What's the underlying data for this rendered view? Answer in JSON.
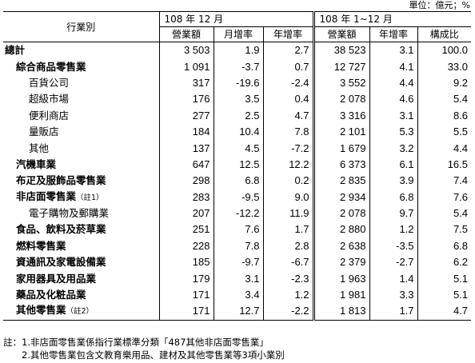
{
  "unit_label": "單位：億元；%",
  "header": {
    "category_col": "行業別",
    "period1": "108 年 12 月",
    "period2": "108 年 1~12 月",
    "p1_cols": [
      "營業額",
      "月增率",
      "年增率"
    ],
    "p2_cols": [
      "營業額",
      "年增率",
      "構成比"
    ]
  },
  "rows": [
    {
      "name": "總計",
      "level": 0,
      "note": "",
      "c1": "3 503",
      "c2": "1.9",
      "c3": "2.7",
      "c4": "38 523",
      "c5": "3.1",
      "c6": "100.0"
    },
    {
      "name": "綜合商品零售業",
      "level": 1,
      "note": "",
      "c1": "1 091",
      "c2": "-3.7",
      "c3": "0.7",
      "c4": "12 727",
      "c5": "4.1",
      "c6": "33.0"
    },
    {
      "name": "百貨公司",
      "level": 2,
      "note": "",
      "c1": "317",
      "c2": "-19.6",
      "c3": "-2.4",
      "c4": "3 552",
      "c5": "4.4",
      "c6": "9.2"
    },
    {
      "name": "超級市場",
      "level": 2,
      "note": "",
      "c1": "176",
      "c2": "3.5",
      "c3": "0.4",
      "c4": "2 078",
      "c5": "4.6",
      "c6": "5.4"
    },
    {
      "name": "便利商店",
      "level": 2,
      "note": "",
      "c1": "277",
      "c2": "2.5",
      "c3": "4.7",
      "c4": "3 316",
      "c5": "3.1",
      "c6": "8.6"
    },
    {
      "name": "量販店",
      "level": 2,
      "note": "",
      "c1": "184",
      "c2": "10.4",
      "c3": "7.8",
      "c4": "2 101",
      "c5": "5.3",
      "c6": "5.5"
    },
    {
      "name": "其他",
      "level": 2,
      "note": "",
      "c1": "137",
      "c2": "4.5",
      "c3": "-7.2",
      "c4": "1 679",
      "c5": "3.2",
      "c6": "4.4"
    },
    {
      "name": "汽機車業",
      "level": 1,
      "note": "",
      "c1": "647",
      "c2": "12.5",
      "c3": "12.2",
      "c4": "6 373",
      "c5": "6.1",
      "c6": "16.5"
    },
    {
      "name": "布疋及服飾品零售業",
      "level": 1,
      "note": "",
      "c1": "298",
      "c2": "6.8",
      "c3": "0.2",
      "c4": "2 835",
      "c5": "3.9",
      "c6": "7.4"
    },
    {
      "name": "非店面零售業",
      "level": 1,
      "note": "（註1）",
      "c1": "283",
      "c2": "-9.5",
      "c3": "9.0",
      "c4": "2 934",
      "c5": "6.8",
      "c6": "7.6"
    },
    {
      "name": "電子購物及郵購業",
      "level": 2,
      "note": "",
      "c1": "207",
      "c2": "-12.2",
      "c3": "11.9",
      "c4": "2 078",
      "c5": "9.7",
      "c6": "5.4"
    },
    {
      "name": "食品、飲料及菸草業",
      "level": 1,
      "note": "",
      "c1": "251",
      "c2": "7.6",
      "c3": "1.7",
      "c4": "2 880",
      "c5": "1.2",
      "c6": "7.5"
    },
    {
      "name": "燃料零售業",
      "level": 1,
      "note": "",
      "c1": "228",
      "c2": "7.8",
      "c3": "2.8",
      "c4": "2 638",
      "c5": "-3.5",
      "c6": "6.8"
    },
    {
      "name": "資通訊及家電設備業",
      "level": 1,
      "note": "",
      "c1": "185",
      "c2": "-9.7",
      "c3": "-6.7",
      "c4": "2 379",
      "c5": "-2.7",
      "c6": "6.2"
    },
    {
      "name": "家用器具及用品業",
      "level": 1,
      "note": "",
      "c1": "179",
      "c2": "3.1",
      "c3": "-2.3",
      "c4": "1 963",
      "c5": "1.4",
      "c6": "5.1"
    },
    {
      "name": "藥品及化粧品業",
      "level": 1,
      "note": "",
      "c1": "171",
      "c2": "3.4",
      "c3": "1.2",
      "c4": "1 981",
      "c5": "3.3",
      "c6": "5.1"
    },
    {
      "name": "其他零售業",
      "level": 1,
      "note": "（註2）",
      "c1": "171",
      "c2": "12.7",
      "c3": "-2.2",
      "c4": "1 813",
      "c5": "1.7",
      "c6": "4.7"
    }
  ],
  "notes": [
    "註：1.非店面零售業係指行業標準分類「487其他非店面零售業」",
    "　　2.其他零售業包含文教育樂用品、建材及其他零售業等3項小業別"
  ]
}
